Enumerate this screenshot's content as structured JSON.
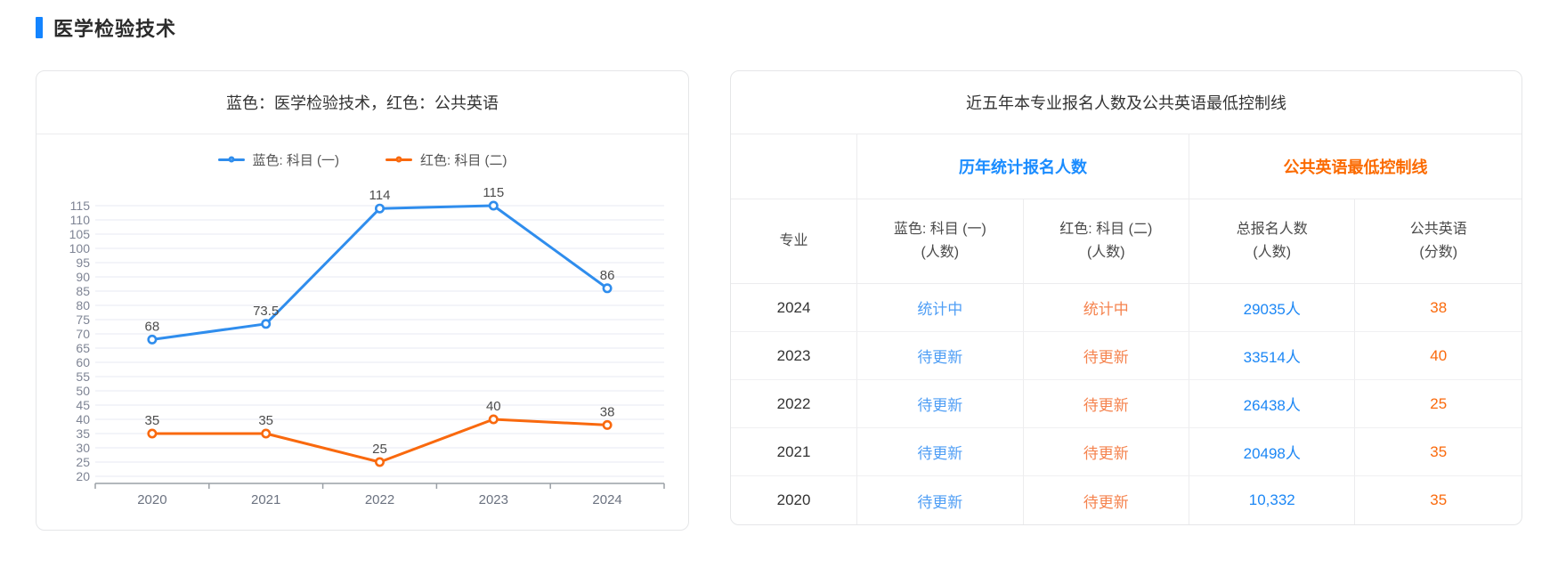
{
  "page": {
    "title": "医学检验技术",
    "accent_color": "#1384ff"
  },
  "chart_panel": {
    "title": "蓝色：医学检验技术，红色：公共英语",
    "legend": [
      {
        "label": "蓝色: 科目 (一)",
        "color": "#2f8ded"
      },
      {
        "label": "红色: 科目 (二)",
        "color": "#f9690e"
      }
    ]
  },
  "chart_data": {
    "type": "line",
    "title": "蓝色：医学检验技术，红色：公共英语",
    "x": [
      "2020",
      "2021",
      "2022",
      "2023",
      "2024"
    ],
    "series": [
      {
        "name": "蓝色: 科目 (一)",
        "color": "#2f8ded",
        "values": [
          68,
          73.5,
          114,
          115,
          86
        ]
      },
      {
        "name": "红色: 科目 (二)",
        "color": "#f9690e",
        "values": [
          35,
          35,
          25,
          40,
          38
        ]
      }
    ],
    "ylim": [
      20,
      115
    ],
    "ytick_step": 5,
    "grid": true,
    "legend_position": "top",
    "point_style": "hollow-circle",
    "data_labels": true
  },
  "table_panel": {
    "title": "近五年本专业报名人数及公共英语最低控制线",
    "group_headers": [
      {
        "label": "历年统计报名人数",
        "color": "#1a8cff"
      },
      {
        "label": "公共英语最低控制线",
        "color": "#fb6a00"
      }
    ],
    "columns": [
      {
        "label": "专业",
        "sub": ""
      },
      {
        "label": "蓝色: 科目 (一)",
        "sub": "(人数)"
      },
      {
        "label": "红色: 科目 (二)",
        "sub": "(人数)"
      },
      {
        "label": "总报名人数",
        "sub": "(人数)"
      },
      {
        "label": "公共英语",
        "sub": "(分数)"
      }
    ],
    "rows": [
      {
        "year": "2024",
        "subject1": "统计中",
        "subject2": "统计中",
        "total": "29035人",
        "score": "38"
      },
      {
        "year": "2023",
        "subject1": "待更新",
        "subject2": "待更新",
        "total": "33514人",
        "score": "40"
      },
      {
        "year": "2022",
        "subject1": "待更新",
        "subject2": "待更新",
        "total": "26438人",
        "score": "25"
      },
      {
        "year": "2021",
        "subject1": "待更新",
        "subject2": "待更新",
        "total": "20498人",
        "score": "35"
      },
      {
        "year": "2020",
        "subject1": "待更新",
        "subject2": "待更新",
        "total": "10,332",
        "score": "35"
      }
    ]
  }
}
